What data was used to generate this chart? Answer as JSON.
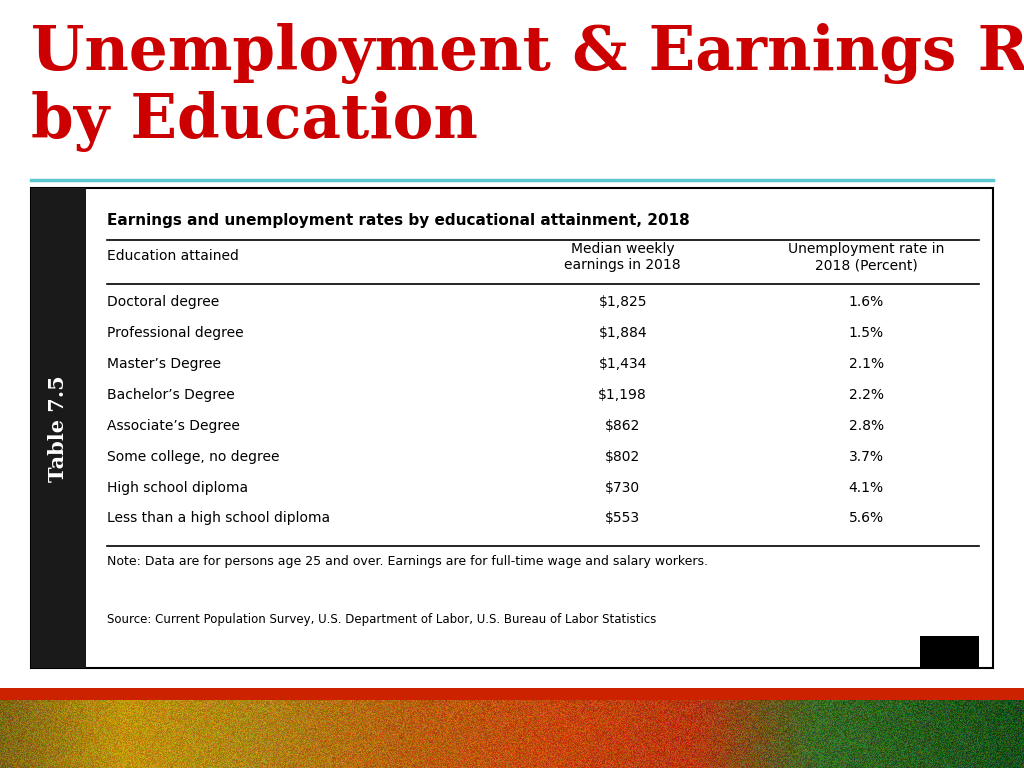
{
  "title_line1": "Unemployment & Earnings Rates",
  "title_line2": "by Education",
  "title_color": "#cc0000",
  "title_fontsize": 44,
  "separator_color": "#5bc8d0",
  "table_title": "Earnings and unemployment rates by educational attainment, 2018",
  "col_headers": [
    "Education attained",
    "Median weekly\nearnings in 2018",
    "Unemployment rate in\n2018 (Percent)"
  ],
  "rows": [
    [
      "Doctoral degree",
      "$1,825",
      "1.6%"
    ],
    [
      "Professional degree",
      "$1,884",
      "1.5%"
    ],
    [
      "Master’s Degree",
      "$1,434",
      "2.1%"
    ],
    [
      "Bachelor’s Degree",
      "$1,198",
      "2.2%"
    ],
    [
      "Associate’s Degree",
      "$862",
      "2.8%"
    ],
    [
      "Some college, no degree",
      "$802",
      "3.7%"
    ],
    [
      "High school diploma",
      "$730",
      "4.1%"
    ],
    [
      "Less than a high school diploma",
      "$553",
      "5.6%"
    ]
  ],
  "note_text": "Note: Data are for persons age 25 and over. Earnings are for full-time wage and salary workers.",
  "source_text": "Source: Current Population Survey, U.S. Department of Labor, U.S. Bureau of Labor Statistics",
  "sidebar_text": "Table 7.5",
  "sidebar_bg": "#1a1a1a",
  "sidebar_text_color": "#ffffff",
  "table_border_color": "#000000",
  "bottom_bar_color": "#cc2200",
  "bg_color": "#ffffff"
}
